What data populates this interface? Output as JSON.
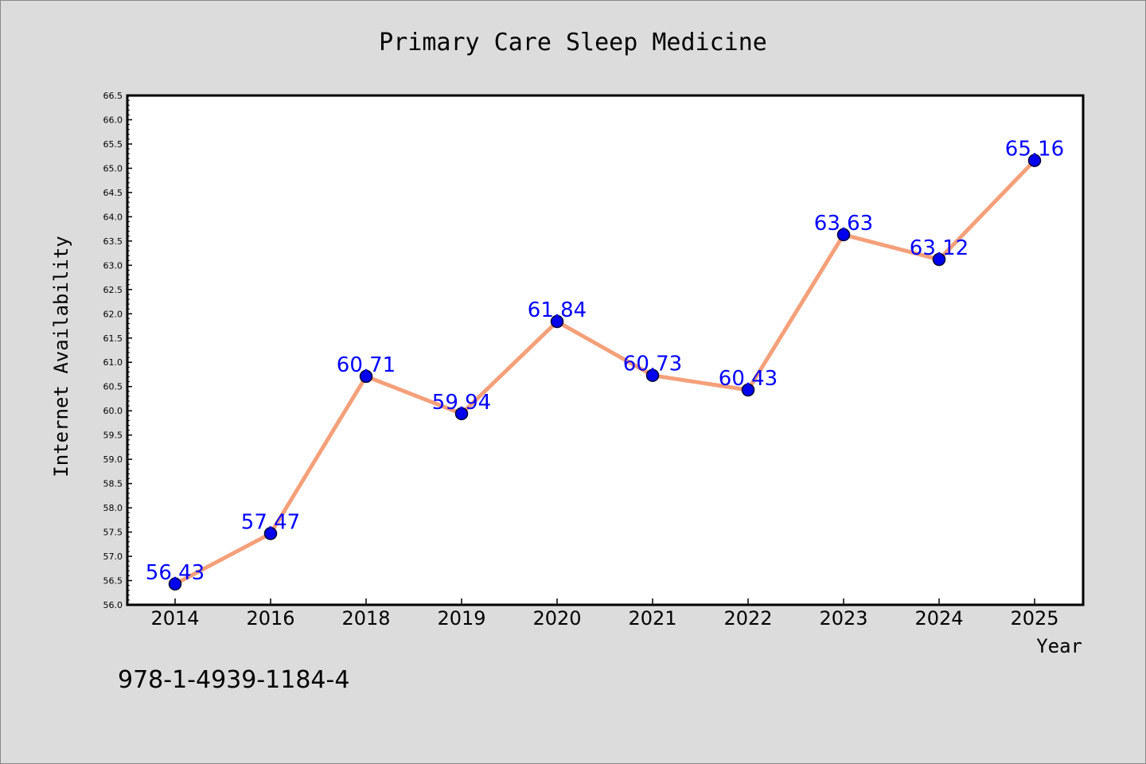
{
  "chart_data": {
    "type": "line",
    "title": "Primary Care Sleep Medicine",
    "xlabel": "Year",
    "ylabel": "Internet Availability",
    "categories": [
      "2014",
      "2016",
      "2018",
      "2019",
      "2020",
      "2021",
      "2022",
      "2023",
      "2024",
      "2025"
    ],
    "series": [
      {
        "values": [
          56.43,
          57.47,
          60.71,
          59.94,
          61.84,
          60.73,
          60.43,
          63.63,
          63.12,
          65.16
        ]
      }
    ],
    "data_labels": [
      "56.43",
      "57.47",
      "60.71",
      "59.94",
      "61.84",
      "60.73",
      "60.43",
      "63.63",
      "63.12",
      "65.16"
    ],
    "ylim": [
      56.0,
      66.5
    ],
    "yticks": [
      "56.0",
      "56.5",
      "57.0",
      "57.5",
      "58.0",
      "58.5",
      "59.0",
      "59.5",
      "60.0",
      "60.5",
      "61.0",
      "61.5",
      "62.0",
      "62.5",
      "63.0",
      "63.5",
      "64.0",
      "64.5",
      "65.0",
      "65.5",
      "66.0",
      "66.5"
    ],
    "grid": false,
    "colors": {
      "line": "#f4a07a",
      "marker": "#0000ee",
      "label": "#0000ff",
      "background": "#dcdcdc",
      "plot_background": "#ffffff"
    }
  },
  "footer": {
    "isbn": "978-1-4939-1184-4"
  }
}
